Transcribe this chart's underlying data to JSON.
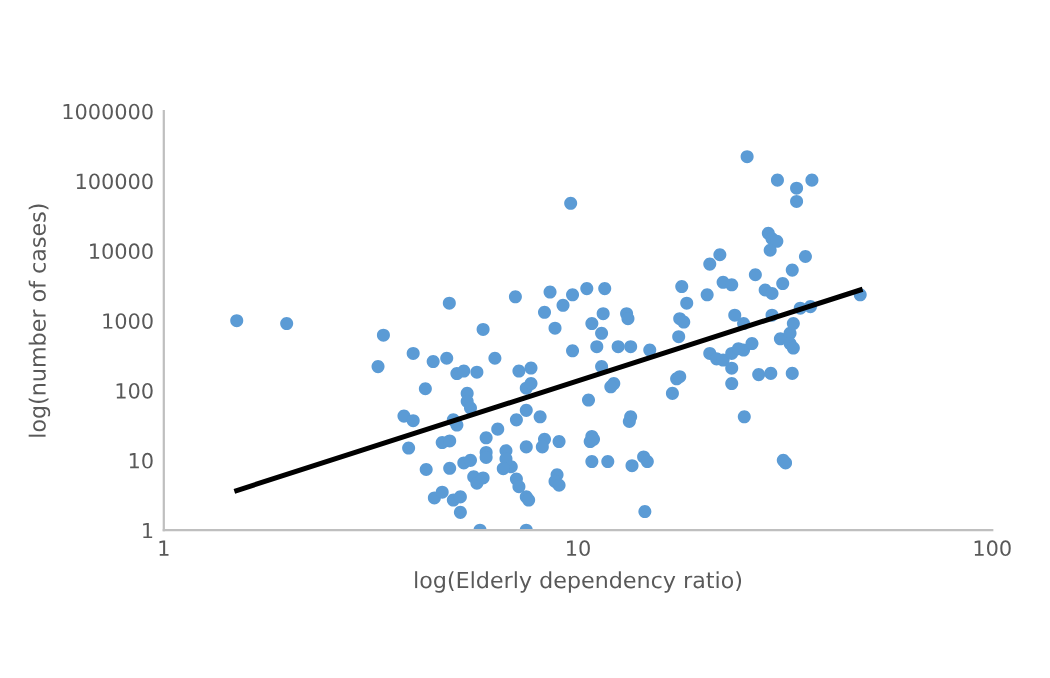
{
  "chart_data": {
    "type": "scatter",
    "xlabel": "log(Elderly dependency ratio)",
    "ylabel": "log(number of cases)",
    "log": "xy",
    "grid": false,
    "legend": false,
    "xlim": [
      1,
      100
    ],
    "xticks": [
      1,
      10,
      100
    ],
    "ylim": [
      1,
      1000000
    ],
    "yticks": [
      1,
      10,
      100,
      1000,
      10000,
      100000,
      1000000
    ],
    "series": [
      {
        "color": "#5b9bd5",
        "marker": "circle",
        "x": [
          1.5,
          1.98,
          3.39,
          3.29,
          4.0,
          4.47,
          4.82,
          4.89,
          5.9,
          7.06,
          8.56,
          9.7,
          9.2,
          8.3,
          8.8,
          9.7,
          5.1,
          5.3,
          5.7,
          6.3,
          7.2,
          7.7,
          7.5,
          7.7,
          4.28,
          5.4,
          5.4,
          5.5,
          3.8,
          4.0,
          5.0,
          5.1,
          7.1,
          8.1,
          7.5,
          3.9,
          4.7,
          4.9,
          4.3,
          4.9,
          5.3,
          5.5,
          6.0,
          6.4,
          6.7,
          6.0,
          6.0,
          6.7,
          6.9,
          6.6,
          7.5,
          8.3,
          8.2,
          9.0,
          5.6,
          5.7,
          5.9,
          7.1,
          7.2,
          7.5,
          7.6,
          8.9,
          8.8,
          9.0,
          4.5,
          4.7,
          5.0,
          5.2,
          5.2,
          5.8,
          7.5,
          9.6,
          10.5,
          11.6,
          10.8,
          11.5,
          11.4,
          11.1,
          11.4,
          10.6,
          13.1,
          13.2,
          12.5,
          13.4,
          14.9,
          12.2,
          12.0,
          13.4,
          13.3,
          10.8,
          10.7,
          10.9,
          10.8,
          11.8,
          13.5,
          14.4,
          14.7,
          14.5,
          17.8,
          18.3,
          17.6,
          18.0,
          17.5,
          17.3,
          17.6,
          16.9,
          20.5,
          20.8,
          22.0,
          22.4,
          23.5,
          23.9,
          25.1,
          25.6,
          26.8,
          25.1,
          20.8,
          21.6,
          22.4,
          23.5,
          24.4,
          26.3,
          23.5,
          23.5,
          27.3,
          29.2,
          25.2,
          28.3,
          29.4,
          31.2,
          28.8,
          29.4,
          30.2,
          29.1,
          30.3,
          33.7,
          33.7,
          36.7,
          35.4,
          32.9,
          29.4,
          30.8,
          32.5,
          33.1,
          32.5,
          33.1,
          32.9,
          31.3,
          31.7,
          36.4,
          34.4,
          48
        ],
        "values": [
          1000,
          910,
          620,
          220,
          340,
          260,
          290,
          1780,
          750,
          2200,
          2570,
          2350,
          1660,
          1320,
          780,
          370,
          175,
          190,
          183,
          290,
          190,
          210,
          108,
          126,
          106,
          91,
          70,
          56,
          43,
          37,
          38,
          32,
          38,
          42,
          52,
          15,
          18,
          19,
          7.4,
          7.7,
          9.2,
          10,
          21,
          28,
          13.7,
          13,
          11,
          10.5,
          8.1,
          7.6,
          15.6,
          20,
          15.6,
          18.6,
          5.8,
          4.7,
          5.6,
          5.4,
          4.2,
          3.0,
          2.7,
          6.2,
          5.0,
          4.4,
          2.9,
          3.5,
          2.7,
          3.0,
          1.8,
          1.0,
          1.0,
          48000,
          2880,
          2880,
          910,
          1260,
          660,
          425,
          220,
          73,
          1260,
          1070,
          425,
          425,
          380,
          126,
          113,
          42,
          36,
          22,
          18.6,
          20,
          9.6,
          9.6,
          8.4,
          11.2,
          9.6,
          1.85,
          3080,
          1780,
          1070,
          955,
          590,
          147,
          158,
          91,
          2350,
          6460,
          8800,
          3550,
          3260,
          1200,
          910,
          223000,
          4550,
          380,
          340,
          284,
          273,
          340,
          397,
          470,
          209,
          126,
          169,
          176,
          42,
          2750,
          2450,
          3400,
          17800,
          14900,
          13700,
          10200,
          103000,
          79000,
          51000,
          103000,
          8300,
          5300,
          1200,
          550,
          660,
          910,
          470,
          405,
          176,
          10,
          9.2,
          1590,
          1510,
          2350
        ]
      },
      {
        "type": "line",
        "color": "#000000",
        "marker": "none",
        "line_style": "solid",
        "x": [
          1.5,
          48
        ],
        "values": [
          3.7,
          2750
        ]
      }
    ]
  }
}
